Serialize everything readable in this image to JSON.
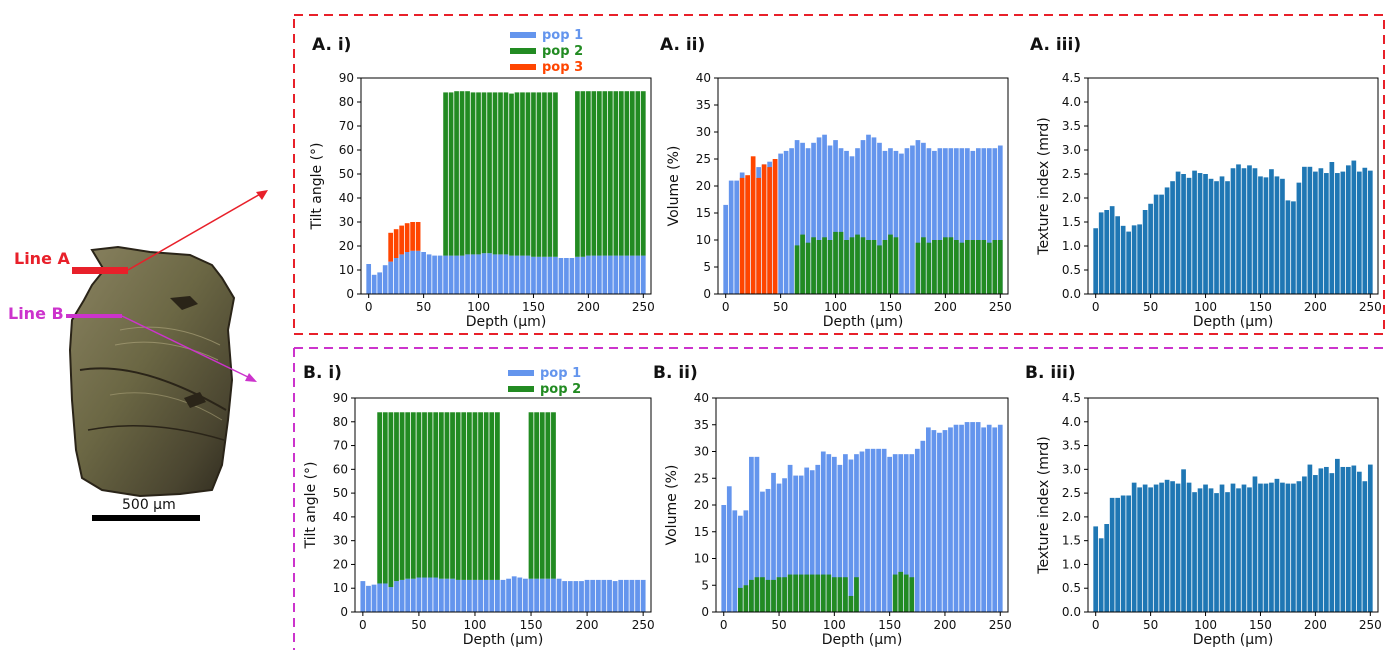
{
  "colors": {
    "pop1": "#6495ED",
    "pop2": "#228B22",
    "pop3": "#FF4500",
    "texture": "#1F77B4",
    "lineA": "#E8202A",
    "lineB": "#CC33CC"
  },
  "sample": {
    "line_a_label": "Line A",
    "line_b_label": "Line B",
    "scale_bar_label": "500 µm"
  },
  "chart_data": [
    {
      "id": "Ai",
      "type": "bar",
      "stacked": true,
      "panel_label": "A. i)",
      "xlabel": "Depth (µm)",
      "ylabel": "Tilt angle (°)",
      "xlim": [
        -7,
        257
      ],
      "ylim": [
        0,
        90
      ],
      "xticks": [
        0,
        50,
        100,
        150,
        200,
        250
      ],
      "yticks": [
        0,
        10,
        20,
        30,
        40,
        50,
        60,
        70,
        80,
        90
      ],
      "legend": [
        "pop 1",
        "pop 2",
        "pop 3"
      ],
      "legend_position": "top-center",
      "bar_width": 5,
      "x": [
        0,
        5,
        10,
        15,
        20,
        25,
        30,
        35,
        40,
        45,
        50,
        55,
        60,
        65,
        70,
        75,
        80,
        85,
        90,
        95,
        100,
        105,
        110,
        115,
        120,
        125,
        130,
        135,
        140,
        145,
        150,
        155,
        160,
        165,
        170,
        175,
        180,
        185,
        190,
        195,
        200,
        205,
        210,
        215,
        220,
        225,
        230,
        235,
        240,
        245,
        250
      ],
      "series": [
        {
          "name": "pop 1",
          "values": [
            12.5,
            8,
            9,
            12,
            13.5,
            15,
            16.5,
            17.5,
            18,
            18,
            17.5,
            16.5,
            16,
            16,
            16,
            16,
            16,
            16,
            16.5,
            16.5,
            16.5,
            17,
            17,
            16.5,
            16.5,
            16.5,
            16,
            16,
            16,
            16,
            15.5,
            15.5,
            15.5,
            15.5,
            15.5,
            15,
            15,
            15,
            15.5,
            15.5,
            16,
            16,
            16,
            16,
            16,
            16,
            16,
            16,
            16,
            16,
            16
          ]
        },
        {
          "name": "pop 2",
          "values": [
            0,
            0,
            0,
            0,
            0,
            0,
            0,
            0,
            0,
            0,
            0,
            0,
            0,
            0,
            68,
            68,
            68.5,
            68.5,
            68,
            67.5,
            67.5,
            67,
            67,
            67.5,
            67.5,
            67.5,
            67.5,
            68,
            68,
            68,
            68.5,
            68.5,
            68.5,
            68.5,
            68.5,
            0,
            0,
            0,
            69,
            69,
            68.5,
            68.5,
            68.5,
            68.5,
            68.5,
            68.5,
            68.5,
            68.5,
            68.5,
            68.5,
            68.5
          ]
        },
        {
          "name": "pop 3",
          "values": [
            0,
            0,
            0,
            0,
            12,
            12,
            12,
            12,
            12,
            12,
            0,
            0,
            0,
            0,
            0,
            0,
            0,
            0,
            0,
            0,
            0,
            0,
            0,
            0,
            0,
            0,
            0,
            0,
            0,
            0,
            0,
            0,
            0,
            0,
            0,
            0,
            0,
            0,
            0,
            0,
            0,
            0,
            0,
            0,
            0,
            0,
            0,
            0,
            0,
            0,
            0
          ]
        }
      ]
    },
    {
      "id": "Aii",
      "type": "bar",
      "stacked": false,
      "panel_label": "A. ii)",
      "xlabel": "Depth (µm)",
      "ylabel": "Volume (%)",
      "xlim": [
        -7,
        257
      ],
      "ylim": [
        0,
        40
      ],
      "xticks": [
        0,
        50,
        100,
        150,
        200,
        250
      ],
      "yticks": [
        0,
        5,
        10,
        15,
        20,
        25,
        30,
        35,
        40
      ],
      "bar_width": 5,
      "x": [
        0,
        5,
        10,
        15,
        20,
        25,
        30,
        35,
        40,
        45,
        50,
        55,
        60,
        65,
        70,
        75,
        80,
        85,
        90,
        95,
        100,
        105,
        110,
        115,
        120,
        125,
        130,
        135,
        140,
        145,
        150,
        155,
        160,
        165,
        170,
        175,
        180,
        185,
        190,
        195,
        200,
        205,
        210,
        215,
        220,
        225,
        230,
        235,
        240,
        245,
        250
      ],
      "series": [
        {
          "name": "pop 1",
          "values": [
            16.5,
            21,
            21,
            22.5,
            21.5,
            23,
            23.5,
            24,
            24.5,
            25,
            26,
            26.5,
            27,
            28.5,
            28,
            27,
            28,
            29,
            29.5,
            27.5,
            28.5,
            27,
            26.5,
            25.5,
            27,
            28.5,
            29.5,
            29,
            28,
            26.5,
            27,
            26.5,
            26,
            27,
            27.5,
            28.5,
            28,
            27,
            26.5,
            27,
            27,
            27,
            27,
            27,
            27,
            26.5,
            27,
            27,
            27,
            27,
            27.5
          ]
        },
        {
          "name": "pop 2",
          "values": [
            0,
            0,
            0,
            0,
            0,
            0,
            0,
            0,
            0,
            0,
            0,
            0,
            0,
            9,
            11,
            9.5,
            10.5,
            10,
            10.5,
            10,
            11.5,
            11.5,
            10,
            10.5,
            11,
            10.5,
            10,
            10,
            9,
            10,
            11,
            10.5,
            0,
            0,
            0,
            9.5,
            10.5,
            9.5,
            10,
            10,
            10.5,
            10.5,
            10,
            9.5,
            10,
            10,
            10,
            10,
            9.5,
            10,
            10
          ]
        },
        {
          "name": "pop 3",
          "values": [
            0,
            0,
            0,
            21.5,
            22,
            25.5,
            21.5,
            24,
            23.5,
            25,
            0,
            0,
            0,
            0,
            0,
            0,
            0,
            0,
            0,
            0,
            0,
            0,
            0,
            0,
            0,
            0,
            0,
            0,
            0,
            0,
            0,
            0,
            0,
            0,
            0,
            0,
            0,
            0,
            0,
            0,
            0,
            0,
            0,
            0,
            0,
            0,
            0,
            0,
            0,
            0,
            0
          ]
        }
      ]
    },
    {
      "id": "Aiii",
      "type": "bar",
      "stacked": false,
      "panel_label": "A. iii)",
      "xlabel": "Depth (µm)",
      "ylabel": "Texture index (mrd)",
      "xlim": [
        -7,
        257
      ],
      "ylim": [
        0,
        4.5
      ],
      "xticks": [
        0,
        50,
        100,
        150,
        200,
        250
      ],
      "yticks": [
        "0.0",
        "0.5",
        "1.0",
        "1.5",
        "2.0",
        "2.5",
        "3.0",
        "3.5",
        "4.0",
        "4.5"
      ],
      "bar_width": 5,
      "x": [
        0,
        5,
        10,
        15,
        20,
        25,
        30,
        35,
        40,
        45,
        50,
        55,
        60,
        65,
        70,
        75,
        80,
        85,
        90,
        95,
        100,
        105,
        110,
        115,
        120,
        125,
        130,
        135,
        140,
        145,
        150,
        155,
        160,
        165,
        170,
        175,
        180,
        185,
        190,
        195,
        200,
        205,
        210,
        215,
        220,
        225,
        230,
        235,
        240,
        245,
        250
      ],
      "series": [
        {
          "name": "texture index",
          "values": [
            1.37,
            1.7,
            1.75,
            1.83,
            1.62,
            1.42,
            1.3,
            1.43,
            1.45,
            1.75,
            1.88,
            2.07,
            2.07,
            2.22,
            2.35,
            2.55,
            2.5,
            2.42,
            2.57,
            2.52,
            2.5,
            2.4,
            2.35,
            2.45,
            2.35,
            2.62,
            2.7,
            2.62,
            2.68,
            2.62,
            2.45,
            2.43,
            2.6,
            2.45,
            2.4,
            1.95,
            1.93,
            2.32,
            2.65,
            2.65,
            2.55,
            2.62,
            2.52,
            2.75,
            2.52,
            2.55,
            2.68,
            2.78,
            2.55,
            2.63,
            2.57
          ]
        }
      ]
    },
    {
      "id": "Bi",
      "type": "bar",
      "stacked": true,
      "panel_label": "B. i)",
      "xlabel": "Depth (µm)",
      "ylabel": "Tilt angle (°)",
      "xlim": [
        -7,
        257
      ],
      "ylim": [
        0,
        90
      ],
      "xticks": [
        0,
        50,
        100,
        150,
        200,
        250
      ],
      "yticks": [
        0,
        10,
        20,
        30,
        40,
        50,
        60,
        70,
        80,
        90
      ],
      "legend": [
        "pop 1",
        "pop 2"
      ],
      "legend_position": "top-center",
      "bar_width": 5,
      "x": [
        0,
        5,
        10,
        15,
        20,
        25,
        30,
        35,
        40,
        45,
        50,
        55,
        60,
        65,
        70,
        75,
        80,
        85,
        90,
        95,
        100,
        105,
        110,
        115,
        120,
        125,
        130,
        135,
        140,
        145,
        150,
        155,
        160,
        165,
        170,
        175,
        180,
        185,
        190,
        195,
        200,
        205,
        210,
        215,
        220,
        225,
        230,
        235,
        240,
        245,
        250
      ],
      "series": [
        {
          "name": "pop 1",
          "values": [
            13,
            11,
            11.5,
            12,
            12,
            10.5,
            13,
            13.5,
            14,
            14,
            14.5,
            14.5,
            14.5,
            14.5,
            14,
            14,
            14,
            13.5,
            13.5,
            13.5,
            13.5,
            13.5,
            13.5,
            13.5,
            13.5,
            13.5,
            14,
            15,
            14.5,
            14,
            14,
            14,
            14,
            14,
            14,
            14,
            13,
            13,
            13,
            13,
            13.5,
            13.5,
            13.5,
            13.5,
            13.5,
            13,
            13.5,
            13.5,
            13.5,
            13.5,
            13.5
          ]
        },
        {
          "name": "pop 2",
          "values": [
            0,
            0,
            0,
            72,
            72,
            73.5,
            71,
            70.5,
            70,
            70,
            69.5,
            69.5,
            69.5,
            69.5,
            70,
            70,
            70,
            70.5,
            70.5,
            70.5,
            70.5,
            70.5,
            70.5,
            70.5,
            70.5,
            0,
            0,
            0,
            0,
            0,
            70,
            70,
            70,
            70,
            70,
            0,
            0,
            0,
            0,
            0,
            0,
            0,
            0,
            0,
            0,
            0,
            0,
            0,
            0,
            0,
            0
          ]
        }
      ]
    },
    {
      "id": "Bii",
      "type": "bar",
      "stacked": false,
      "panel_label": "B. ii)",
      "xlabel": "Depth (µm)",
      "ylabel": "Volume (%)",
      "xlim": [
        -7,
        257
      ],
      "ylim": [
        0,
        40
      ],
      "xticks": [
        0,
        50,
        100,
        150,
        200,
        250
      ],
      "yticks": [
        0,
        5,
        10,
        15,
        20,
        25,
        30,
        35,
        40
      ],
      "bar_width": 5,
      "x": [
        0,
        5,
        10,
        15,
        20,
        25,
        30,
        35,
        40,
        45,
        50,
        55,
        60,
        65,
        70,
        75,
        80,
        85,
        90,
        95,
        100,
        105,
        110,
        115,
        120,
        125,
        130,
        135,
        140,
        145,
        150,
        155,
        160,
        165,
        170,
        175,
        180,
        185,
        190,
        195,
        200,
        205,
        210,
        215,
        220,
        225,
        230,
        235,
        240,
        245,
        250
      ],
      "series": [
        {
          "name": "pop 1",
          "values": [
            20,
            23.5,
            19,
            18,
            19,
            29,
            29,
            22.5,
            23,
            26,
            24,
            25,
            27.5,
            25.5,
            25.5,
            27,
            26.5,
            27.5,
            30,
            29.5,
            29,
            27.5,
            29.5,
            28.5,
            29.5,
            30,
            30.5,
            30.5,
            30.5,
            30.5,
            29,
            29.5,
            29.5,
            29.5,
            29.5,
            30.5,
            32,
            34.5,
            34,
            33.5,
            34,
            34.5,
            35,
            35,
            35.5,
            35.5,
            35.5,
            34.5,
            35,
            34.5,
            35
          ]
        },
        {
          "name": "pop 2",
          "values": [
            0,
            0,
            0,
            4.5,
            5,
            6,
            6.5,
            6.5,
            6,
            6,
            6.5,
            6.5,
            7,
            7,
            7,
            7,
            7,
            7,
            7,
            7,
            6.5,
            6.5,
            6.5,
            3,
            6.5,
            0,
            0,
            0,
            0,
            0,
            0,
            7,
            7.5,
            7,
            6.5,
            0,
            0,
            0,
            0,
            0,
            0,
            0,
            0,
            0,
            0,
            0,
            0,
            0,
            0,
            0,
            0
          ]
        }
      ]
    },
    {
      "id": "Biii",
      "type": "bar",
      "stacked": false,
      "panel_label": "B. iii)",
      "xlabel": "Depth (µm)",
      "ylabel": "Texture index (mrd)",
      "xlim": [
        -7,
        257
      ],
      "ylim": [
        0,
        4.5
      ],
      "xticks": [
        0,
        50,
        100,
        150,
        200,
        250
      ],
      "yticks": [
        "0.0",
        "0.5",
        "1.0",
        "1.5",
        "2.0",
        "2.5",
        "3.0",
        "3.5",
        "4.0",
        "4.5"
      ],
      "bar_width": 5,
      "x": [
        0,
        5,
        10,
        15,
        20,
        25,
        30,
        35,
        40,
        45,
        50,
        55,
        60,
        65,
        70,
        75,
        80,
        85,
        90,
        95,
        100,
        105,
        110,
        115,
        120,
        125,
        130,
        135,
        140,
        145,
        150,
        155,
        160,
        165,
        170,
        175,
        180,
        185,
        190,
        195,
        200,
        205,
        210,
        215,
        220,
        225,
        230,
        235,
        240,
        245,
        250
      ],
      "series": [
        {
          "name": "texture index",
          "values": [
            1.8,
            1.55,
            1.85,
            2.4,
            2.4,
            2.45,
            2.45,
            2.72,
            2.62,
            2.68,
            2.62,
            2.68,
            2.72,
            2.78,
            2.75,
            2.7,
            3.0,
            2.72,
            2.52,
            2.6,
            2.68,
            2.6,
            2.5,
            2.68,
            2.52,
            2.7,
            2.6,
            2.68,
            2.62,
            2.85,
            2.7,
            2.7,
            2.72,
            2.8,
            2.72,
            2.7,
            2.7,
            2.75,
            2.85,
            3.1,
            2.88,
            3.02,
            3.05,
            2.92,
            3.22,
            3.05,
            3.05,
            3.08,
            2.95,
            2.75,
            3.1
          ]
        }
      ]
    }
  ]
}
